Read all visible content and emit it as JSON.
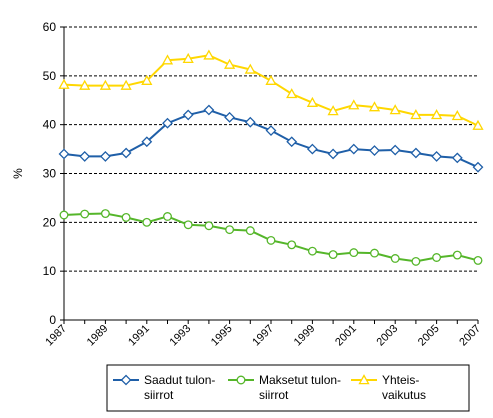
{
  "chart_data": {
    "type": "line",
    "ylabel": "%",
    "ylim": [
      0,
      60
    ],
    "yticks": [
      0,
      10,
      20,
      30,
      40,
      50,
      60
    ],
    "xlim": [
      1987,
      2007
    ],
    "xticks": [
      "1987",
      "1989",
      "1991",
      "1993",
      "1995",
      "1997",
      "1999",
      "2001",
      "2003",
      "2005",
      "2007"
    ],
    "x": [
      1987,
      1988,
      1989,
      1990,
      1991,
      1992,
      1993,
      1994,
      1995,
      1996,
      1997,
      1998,
      1999,
      2000,
      2001,
      2002,
      2003,
      2004,
      2005,
      2006,
      2007
    ],
    "grid": true,
    "legend_position": "bottom",
    "series": [
      {
        "name_lines": [
          "Saadut tulon-",
          "siirrot"
        ],
        "color": "#1f5fa8",
        "marker": "diamond",
        "values": [
          34.0,
          33.5,
          33.5,
          34.2,
          36.5,
          40.3,
          42.0,
          43.0,
          41.5,
          40.5,
          38.8,
          36.5,
          35.0,
          34.0,
          35.0,
          34.7,
          34.8,
          34.2,
          33.5,
          33.2,
          31.3
        ]
      },
      {
        "name_lines": [
          "Maksetut tulon-",
          "siirrot"
        ],
        "color": "#55b62a",
        "marker": "circle",
        "values": [
          21.5,
          21.7,
          21.8,
          21.0,
          20.0,
          21.2,
          19.5,
          19.3,
          18.5,
          18.3,
          16.3,
          15.4,
          14.1,
          13.4,
          13.8,
          13.7,
          12.6,
          12.0,
          12.8,
          13.3,
          12.2
        ]
      },
      {
        "name_lines": [
          "Yhteis-",
          "vaikutus"
        ],
        "color": "#ffd700",
        "marker": "triangle",
        "values": [
          48.2,
          48.0,
          48.0,
          48.0,
          49.0,
          53.2,
          53.5,
          54.2,
          52.3,
          51.3,
          49.0,
          46.3,
          44.5,
          42.8,
          44.0,
          43.6,
          43.0,
          42.0,
          42.0,
          41.8,
          39.8
        ]
      }
    ]
  }
}
